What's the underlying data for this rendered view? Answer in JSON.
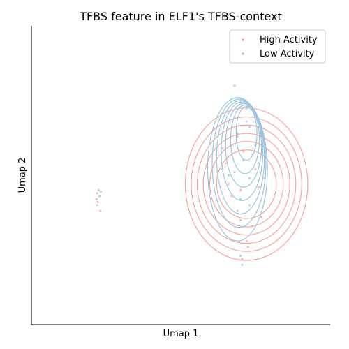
{
  "chart_data": {
    "type": "scatter",
    "title": "TFBS feature in ELF1's TFBS-context",
    "xlabel": "Umap 1",
    "ylabel": "Umap 2",
    "xlim": [
      0,
      10
    ],
    "ylim": [
      0,
      10
    ],
    "grid": false,
    "legend": {
      "placement": "top-right"
    },
    "colors": {
      "high": "#f4a6a0",
      "low": "#9cc5e0",
      "axis": "#000000"
    },
    "series": [
      {
        "name": "High Activity",
        "key": "high",
        "points": [
          [
            2.2,
            4.4
          ],
          [
            2.22,
            4.1
          ],
          [
            2.3,
            3.8
          ],
          [
            2.18,
            4.2
          ],
          [
            6.5,
            5.4
          ],
          [
            6.8,
            5.1
          ],
          [
            6.6,
            4.7
          ],
          [
            7.0,
            4.5
          ],
          [
            7.5,
            5.2
          ],
          [
            7.3,
            4.0
          ],
          [
            6.9,
            6.3
          ],
          [
            7.1,
            5.8
          ],
          [
            7.6,
            4.6
          ],
          [
            6.7,
            4.3
          ],
          [
            7.4,
            3.3
          ],
          [
            7.8,
            4.9
          ],
          [
            7.2,
            2.8
          ],
          [
            7.25,
            2.6
          ],
          [
            7.0,
            3.5
          ],
          [
            6.4,
            5.9
          ],
          [
            7.7,
            3.6
          ],
          [
            7.05,
            2.2
          ]
        ],
        "contours": [
          {
            "cx": 7.2,
            "cy": 4.7,
            "rx": 1.0,
            "ry": 1.15
          },
          {
            "cx": 7.2,
            "cy": 4.7,
            "rx": 1.23,
            "ry": 1.43
          },
          {
            "cx": 7.2,
            "cy": 4.7,
            "rx": 1.45,
            "ry": 1.7
          },
          {
            "cx": 7.2,
            "cy": 4.7,
            "rx": 1.65,
            "ry": 1.98
          },
          {
            "cx": 7.2,
            "cy": 4.7,
            "rx": 1.85,
            "ry": 2.25
          },
          {
            "cx": 7.2,
            "cy": 4.7,
            "rx": 2.05,
            "ry": 2.55
          }
        ]
      },
      {
        "name": "Low Activity",
        "key": "low",
        "points": [
          [
            2.25,
            4.5
          ],
          [
            2.28,
            4.3
          ],
          [
            2.2,
            4.0
          ],
          [
            2.32,
            4.45
          ],
          [
            6.8,
            8.0
          ],
          [
            7.0,
            7.5
          ],
          [
            7.2,
            6.8
          ],
          [
            6.9,
            6.4
          ],
          [
            7.1,
            5.5
          ],
          [
            6.6,
            5.0
          ],
          [
            7.4,
            5.7
          ],
          [
            7.3,
            4.9
          ],
          [
            7.0,
            4.2
          ],
          [
            7.6,
            5.4
          ],
          [
            6.7,
            6.0
          ],
          [
            7.3,
            6.6
          ],
          [
            7.5,
            6.0
          ],
          [
            7.0,
            2.3
          ],
          [
            7.05,
            2.0
          ],
          [
            6.4,
            5.2
          ],
          [
            7.2,
            7.2
          ],
          [
            6.9,
            3.8
          ]
        ],
        "contours": [
          {
            "cx": 7.2,
            "cy": 6.4,
            "rx": 0.35,
            "ry": 0.9
          },
          {
            "cx": 7.15,
            "cy": 6.2,
            "rx": 0.48,
            "ry": 1.15
          },
          {
            "cx": 7.1,
            "cy": 6.0,
            "rx": 0.6,
            "ry": 1.4
          },
          {
            "cx": 7.05,
            "cy": 5.8,
            "rx": 0.7,
            "ry": 1.65
          },
          {
            "cx": 7.0,
            "cy": 5.6,
            "rx": 0.8,
            "ry": 1.9
          },
          {
            "cx": 6.95,
            "cy": 5.4,
            "rx": 0.9,
            "ry": 2.15
          },
          {
            "cx": 6.9,
            "cy": 5.2,
            "rx": 1.0,
            "ry": 2.4
          }
        ]
      }
    ]
  }
}
